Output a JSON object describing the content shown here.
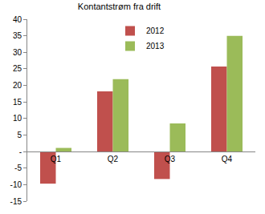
{
  "chart_data": {
    "type": "bar",
    "title": "Kontantstrøm fra drift",
    "categories": [
      "Q1",
      "Q2",
      "Q3",
      "Q4"
    ],
    "series": [
      {
        "name": "2012",
        "color": "#c0504d",
        "values": [
          -9.7,
          18.2,
          -8.3,
          25.7
        ]
      },
      {
        "name": "2013",
        "color": "#9bbb59",
        "values": [
          1.1,
          21.9,
          8.5,
          35.0
        ]
      }
    ],
    "ylim": [
      -15,
      40
    ],
    "yticks": [
      -15,
      -10,
      -5,
      {
        "value": 0,
        "label": "-"
      },
      5,
      10,
      15,
      20,
      25,
      30,
      35,
      40
    ],
    "grid": false,
    "legend": "top"
  }
}
